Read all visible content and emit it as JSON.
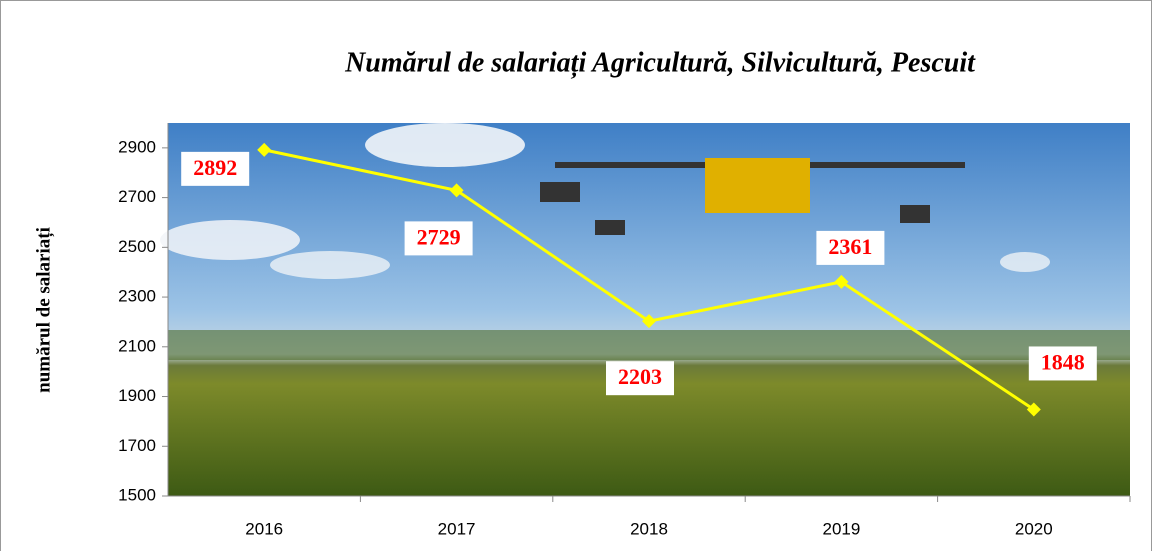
{
  "chart_data": {
    "type": "line",
    "title": "Numărul de salariați Agricultură, Silvicultură, Pescuit",
    "y_label": "numărul de salariați",
    "categories": [
      "2016",
      "2017",
      "2018",
      "2019",
      "2020"
    ],
    "series": [
      {
        "name": "numărul de salariați",
        "color": "#ffff00",
        "values": [
          2892,
          2729,
          2203,
          2361,
          1848
        ]
      }
    ],
    "ylim": [
      1500,
      3000
    ],
    "yticks": [
      1500,
      1700,
      1900,
      2100,
      2300,
      2500,
      2700,
      2900
    ]
  }
}
